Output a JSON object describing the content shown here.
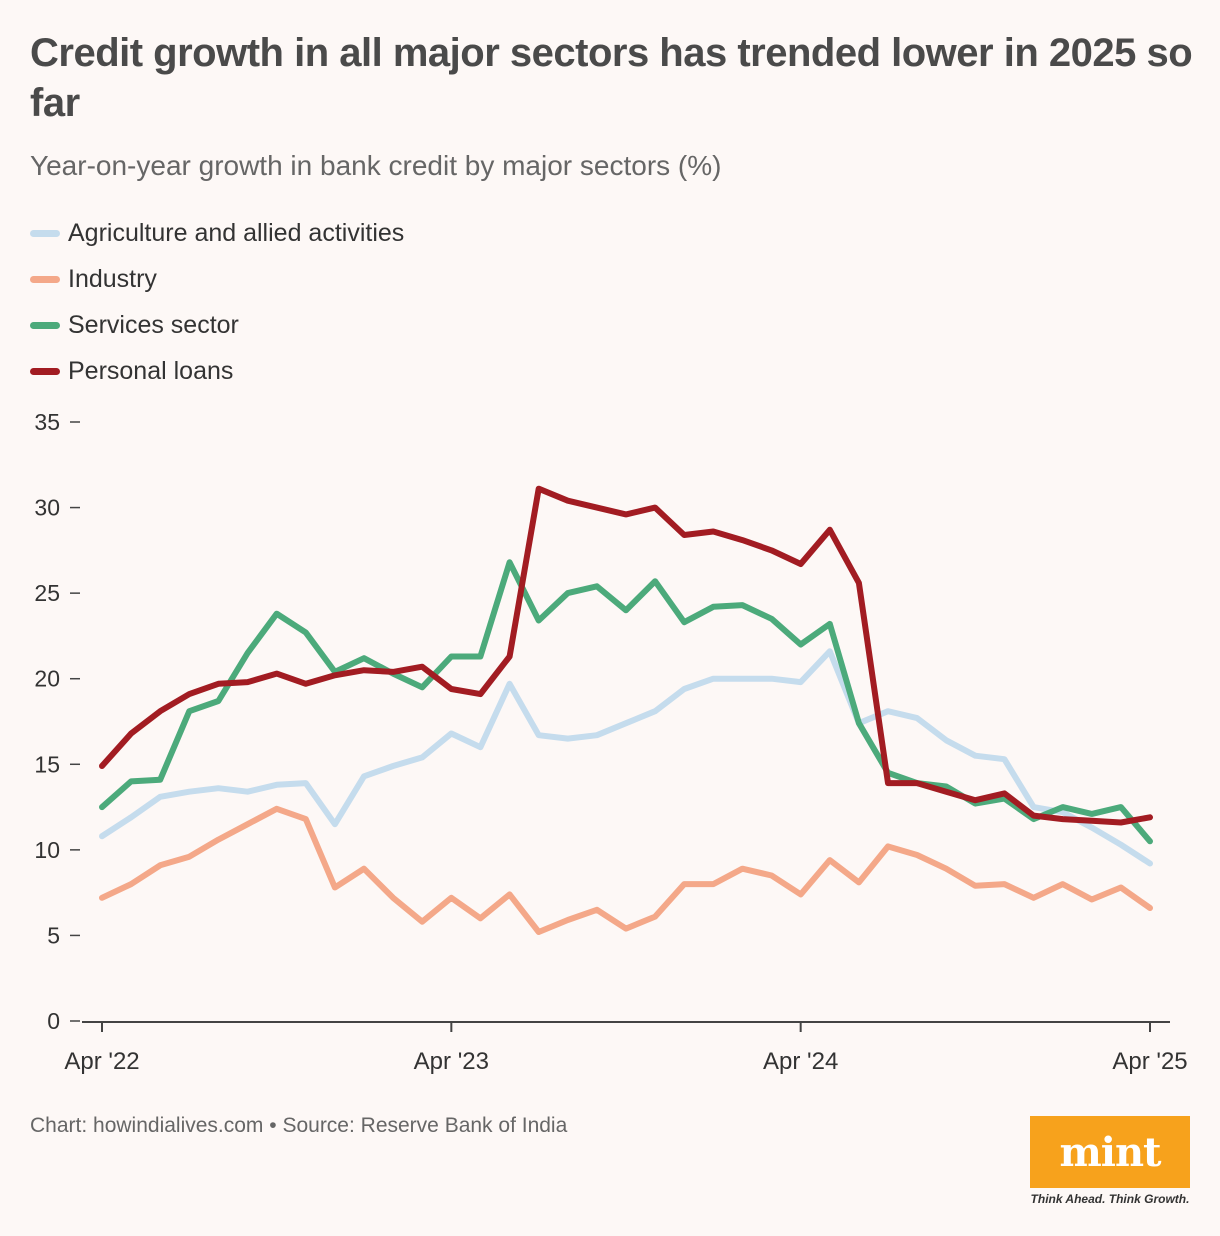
{
  "header": {
    "title": "Credit growth in all major sectors has trended lower in 2025 so far",
    "subtitle": "Year-on-year growth in bank credit by major sectors (%)"
  },
  "footer": {
    "source": "Chart: howindialives.com • Source: Reserve Bank of India",
    "logo": "mint",
    "tagline": "Think Ahead. Think Growth."
  },
  "colors": {
    "agriculture": "#c5dced",
    "industry": "#f4a889",
    "services": "#4caa7b",
    "personal": "#a21c22",
    "axis": "#444444"
  },
  "chart_data": {
    "type": "line",
    "title": "Credit growth in all major sectors has trended lower in 2025 so far",
    "subtitle": "Year-on-year growth in bank credit by major sectors (%)",
    "x_note": "monthly, Apr 2022 to Apr 2025",
    "xticks": [
      {
        "index": 0,
        "label": "Apr '22"
      },
      {
        "index": 12,
        "label": "Apr '23"
      },
      {
        "index": 24,
        "label": "Apr '24"
      },
      {
        "index": 36,
        "label": "Apr '25"
      }
    ],
    "ylim": [
      0,
      35
    ],
    "yticks": [
      0,
      5,
      10,
      15,
      20,
      25,
      30,
      35
    ],
    "legend_position": "top-left",
    "series": [
      {
        "name": "Agriculture and allied activities",
        "color": "#c5dced",
        "values": [
          10.8,
          11.9,
          13.1,
          13.4,
          13.6,
          13.4,
          13.8,
          13.9,
          11.5,
          14.3,
          14.9,
          15.4,
          16.8,
          16.0,
          19.7,
          16.7,
          16.5,
          16.7,
          17.4,
          18.1,
          19.4,
          20.0,
          20.0,
          20.0,
          19.8,
          21.6,
          17.4,
          18.1,
          17.7,
          16.4,
          15.5,
          15.3,
          12.5,
          12.2,
          11.3,
          10.3,
          9.2
        ]
      },
      {
        "name": "Industry",
        "color": "#f4a889",
        "values": [
          7.2,
          8.0,
          9.1,
          9.6,
          10.6,
          11.5,
          12.4,
          11.8,
          7.8,
          8.9,
          7.2,
          5.8,
          7.2,
          6.0,
          7.4,
          5.2,
          5.9,
          6.5,
          5.4,
          6.1,
          8.0,
          8.0,
          8.9,
          8.5,
          7.4,
          9.4,
          8.1,
          10.2,
          9.7,
          8.9,
          7.9,
          8.0,
          7.2,
          8.0,
          7.1,
          7.8,
          6.6
        ]
      },
      {
        "name": "Services sector",
        "color": "#4caa7b",
        "values": [
          12.5,
          14.0,
          14.1,
          18.1,
          18.7,
          21.5,
          23.8,
          22.7,
          20.4,
          21.2,
          20.3,
          19.5,
          21.3,
          21.3,
          26.8,
          23.4,
          25.0,
          25.4,
          24.0,
          25.7,
          23.3,
          24.2,
          24.3,
          23.5,
          22.0,
          23.2,
          17.4,
          14.5,
          13.9,
          13.7,
          12.7,
          13.0,
          11.8,
          12.5,
          12.1,
          12.5,
          10.5
        ]
      },
      {
        "name": "Personal loans",
        "color": "#a21c22",
        "values": [
          14.9,
          16.8,
          18.1,
          19.1,
          19.7,
          19.8,
          20.3,
          19.7,
          20.2,
          20.5,
          20.4,
          20.7,
          19.4,
          19.1,
          21.3,
          31.1,
          30.4,
          30.0,
          29.6,
          30.0,
          28.4,
          28.6,
          28.1,
          27.5,
          26.7,
          28.7,
          25.6,
          13.9,
          13.9,
          13.4,
          12.9,
          13.3,
          12.0,
          11.8,
          11.7,
          11.6,
          11.9
        ]
      }
    ]
  }
}
